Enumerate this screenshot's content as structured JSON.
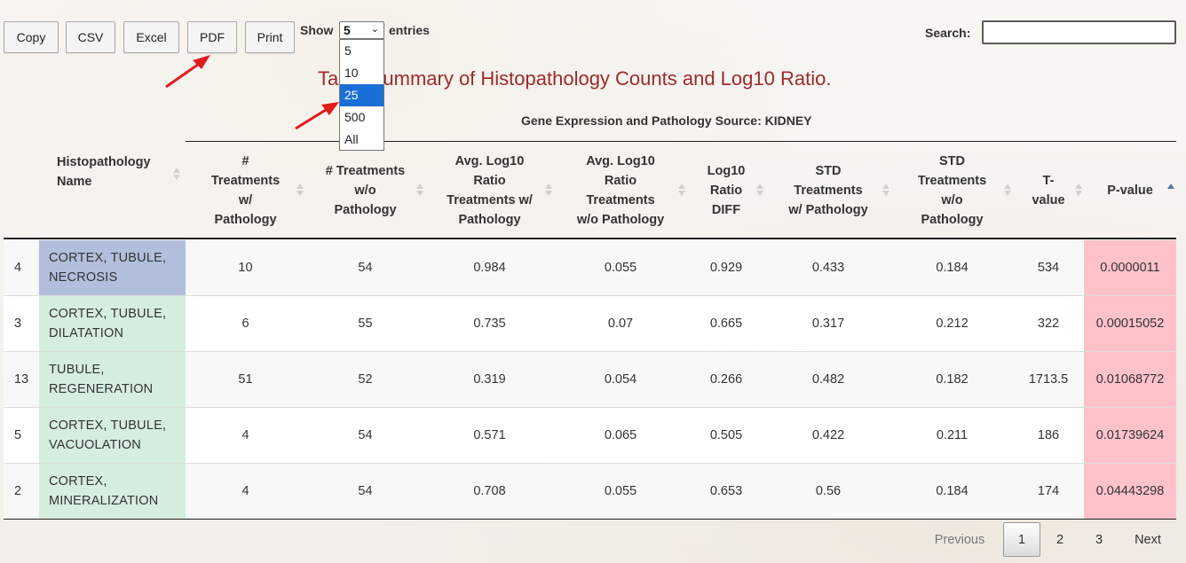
{
  "toolbar": {
    "copy": "Copy",
    "csv": "CSV",
    "excel": "Excel",
    "pdf": "PDF",
    "print": "Print"
  },
  "length": {
    "show_label": "Show",
    "selected": "5",
    "entries_label": "entries",
    "options": [
      "5",
      "10",
      "25",
      "500",
      "All"
    ],
    "highlighted": "25"
  },
  "search": {
    "label": "Search:",
    "value": ""
  },
  "caption": "Table Summary of Histopathology Counts and Log10 Ratio.",
  "source": "Gene Expression and Pathology Source: KIDNEY",
  "columns": [
    "Histopathology Name",
    "# Treatments w/ Pathology",
    "# Treatments w/o Pathology",
    "Avg. Log10 Ratio Treatments w/ Pathology",
    "Avg. Log10 Ratio Treatments w/o Pathology",
    "Log10 Ratio DIFF",
    "STD Treatments w/ Pathology",
    "STD Treatments w/o Pathology",
    "T-value",
    "P-value"
  ],
  "rows": [
    {
      "idx": "4",
      "name": "CORTEX, TUBULE, NECROSIS",
      "tw": "10",
      "two": "54",
      "avg_w": "0.984",
      "avg_wo": "0.055",
      "diff": "0.929",
      "std_w": "0.433",
      "std_wo": "0.184",
      "t": "534",
      "p": "0.0000011",
      "name_color": "#b1bfdc"
    },
    {
      "idx": "3",
      "name": "CORTEX, TUBULE, DILATATION",
      "tw": "6",
      "two": "55",
      "avg_w": "0.735",
      "avg_wo": "0.07",
      "diff": "0.665",
      "std_w": "0.317",
      "std_wo": "0.212",
      "t": "322",
      "p": "0.00015052",
      "name_color": "#d5eedf"
    },
    {
      "idx": "13",
      "name": "TUBULE, REGENERATION",
      "tw": "51",
      "two": "52",
      "avg_w": "0.319",
      "avg_wo": "0.054",
      "diff": "0.266",
      "std_w": "0.482",
      "std_wo": "0.182",
      "t": "1713.5",
      "p": "0.01068772",
      "name_color": "#d5eedf"
    },
    {
      "idx": "5",
      "name": "CORTEX, TUBULE, VACUOLATION",
      "tw": "4",
      "two": "54",
      "avg_w": "0.571",
      "avg_wo": "0.065",
      "diff": "0.505",
      "std_w": "0.422",
      "std_wo": "0.211",
      "t": "186",
      "p": "0.01739624",
      "name_color": "#d5eedf"
    },
    {
      "idx": "2",
      "name": "CORTEX, MINERALIZATION",
      "tw": "4",
      "two": "54",
      "avg_w": "0.708",
      "avg_wo": "0.055",
      "diff": "0.653",
      "std_w": "0.56",
      "std_wo": "0.184",
      "t": "174",
      "p": "0.04443298",
      "name_color": "#d5eedf"
    }
  ],
  "pvalue_color": "#ffc2cb",
  "pagination": {
    "previous": "Previous",
    "pages": [
      "1",
      "2",
      "3"
    ],
    "current": "1",
    "next": "Next"
  },
  "colors": {
    "caption": "#9b2b2b",
    "dropdown_highlight": "#1a6ed8",
    "annotation_arrow": "#e21b1b"
  }
}
